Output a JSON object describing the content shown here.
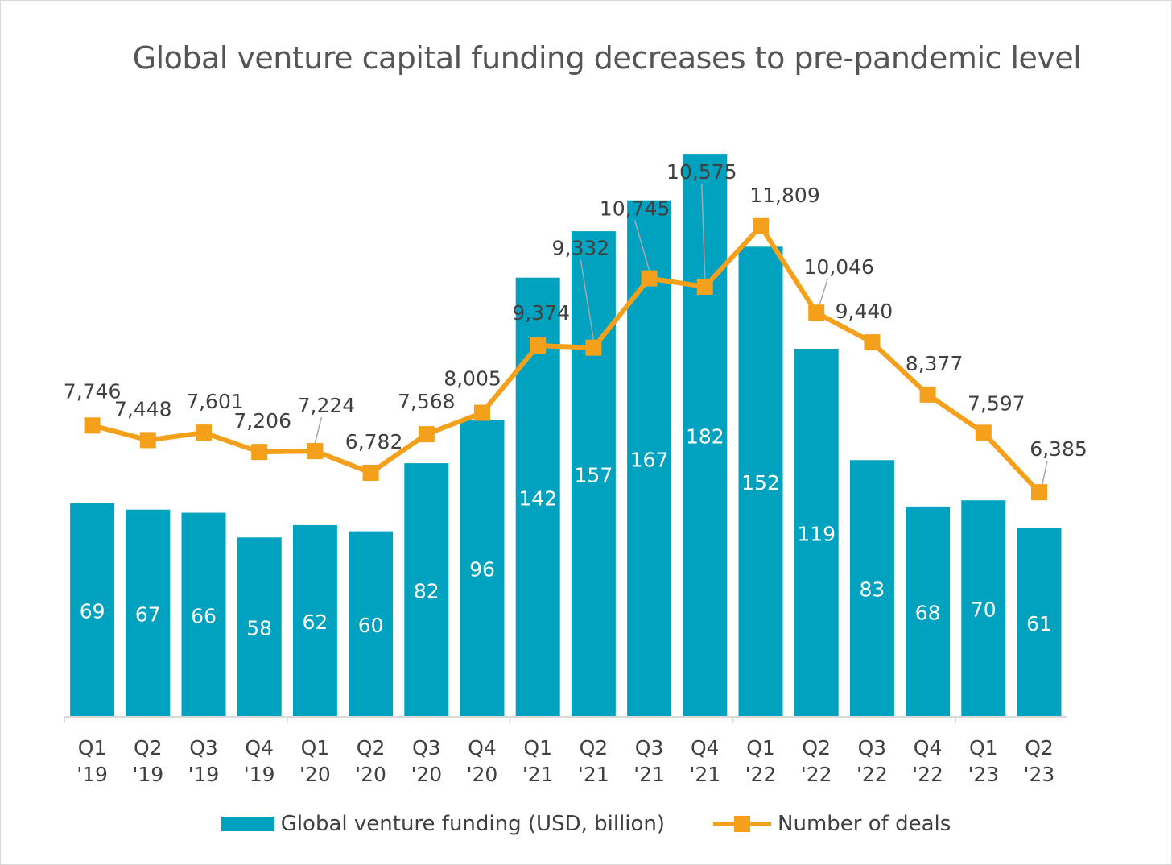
{
  "chart_data": {
    "type": "bar",
    "title": "Global venture capital funding decreases to pre-pandemic level",
    "categories": [
      [
        "Q1",
        "'19"
      ],
      [
        "Q2",
        "'19"
      ],
      [
        "Q3",
        "'19"
      ],
      [
        "Q4",
        "'19"
      ],
      [
        "Q1",
        "'20"
      ],
      [
        "Q2",
        "'20"
      ],
      [
        "Q3",
        "'20"
      ],
      [
        "Q4",
        "'20"
      ],
      [
        "Q1",
        "'21"
      ],
      [
        "Q2",
        "'21"
      ],
      [
        "Q3",
        "'21"
      ],
      [
        "Q4",
        "'21"
      ],
      [
        "Q1",
        "'22"
      ],
      [
        "Q2",
        "'22"
      ],
      [
        "Q3",
        "'22"
      ],
      [
        "Q4",
        "'22"
      ],
      [
        "Q1",
        "'23"
      ],
      [
        "Q2",
        "'23"
      ]
    ],
    "series": [
      {
        "name": "Global venture funding (USD, billion)",
        "type": "bar",
        "color": "#00A2C0",
        "values": [
          69,
          67,
          66,
          58,
          62,
          60,
          82,
          96,
          142,
          157,
          167,
          182,
          152,
          119,
          83,
          68,
          70,
          61
        ],
        "labels": [
          "69",
          "67",
          "66",
          "58",
          "62",
          "60",
          "82",
          "96",
          "142",
          "157",
          "167",
          "182",
          "152",
          "119",
          "83",
          "68",
          "70",
          "61"
        ]
      },
      {
        "name": "Number of deals",
        "type": "line",
        "color": "#F5A01A",
        "marker": "square",
        "values": [
          7746,
          7448,
          7601,
          7206,
          7224,
          6782,
          7568,
          8005,
          9374,
          9332,
          10745,
          10575,
          11809,
          10046,
          9440,
          8377,
          7597,
          6385
        ],
        "labels": [
          "7,746",
          "7,448",
          "7,601",
          "7,206",
          "7,224",
          "6,782",
          "7,568",
          "8,005",
          "9,374",
          "9,332",
          "10,745",
          "10,575",
          "11,809",
          "10,046",
          "9,440",
          "8,377",
          "7,597",
          "6,385"
        ]
      }
    ],
    "legend_position": "bottom",
    "grid": false
  }
}
